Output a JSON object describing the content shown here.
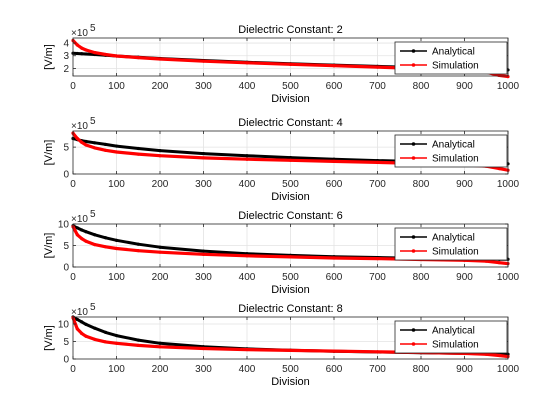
{
  "chart_data": [
    {
      "type": "line",
      "title": "Dielectric Constant: 2",
      "xlabel": "Division",
      "ylabel": "[V/m]",
      "multiplier_base": "×10",
      "multiplier_exp": "5",
      "xlim": [
        0,
        1000
      ],
      "ylim": [
        1.4,
        4.4
      ],
      "xticks": [
        0,
        100,
        200,
        300,
        400,
        500,
        600,
        700,
        800,
        900,
        1000
      ],
      "yticks": [
        2,
        3,
        4
      ],
      "grid": true,
      "legend": "top-right",
      "x": [
        0,
        10,
        20,
        30,
        50,
        75,
        100,
        150,
        200,
        300,
        400,
        500,
        600,
        700,
        800,
        900,
        950,
        980,
        1000
      ],
      "series": [
        {
          "name": "Analytical",
          "color": "#000000",
          "values": [
            3.2,
            3.18,
            3.16,
            3.14,
            3.1,
            3.04,
            2.98,
            2.88,
            2.78,
            2.62,
            2.48,
            2.36,
            2.26,
            2.16,
            2.06,
            1.96,
            1.92,
            1.9,
            1.88
          ]
        },
        {
          "name": "Simulation",
          "color": "#ff0000",
          "values": [
            4.2,
            3.85,
            3.6,
            3.45,
            3.25,
            3.1,
            2.98,
            2.85,
            2.74,
            2.57,
            2.44,
            2.32,
            2.21,
            2.1,
            1.98,
            1.85,
            1.7,
            1.45,
            1.35
          ]
        }
      ]
    },
    {
      "type": "line",
      "title": "Dielectric Constant: 4",
      "xlabel": "Division",
      "ylabel": "[V/m]",
      "multiplier_base": "×10",
      "multiplier_exp": "5",
      "xlim": [
        0,
        1000
      ],
      "ylim": [
        0,
        8
      ],
      "xticks": [
        0,
        100,
        200,
        300,
        400,
        500,
        600,
        700,
        800,
        900,
        1000
      ],
      "yticks": [
        0,
        5
      ],
      "grid": true,
      "legend": "top-right",
      "x": [
        0,
        10,
        20,
        30,
        50,
        75,
        100,
        150,
        200,
        300,
        400,
        500,
        600,
        700,
        800,
        900,
        950,
        980,
        1000
      ],
      "series": [
        {
          "name": "Analytical",
          "color": "#000000",
          "values": [
            6.6,
            6.4,
            6.2,
            6.05,
            5.8,
            5.5,
            5.2,
            4.75,
            4.35,
            3.8,
            3.4,
            3.05,
            2.75,
            2.5,
            2.3,
            2.1,
            2.0,
            1.95,
            1.9
          ]
        },
        {
          "name": "Simulation",
          "color": "#ff0000",
          "values": [
            7.6,
            6.6,
            5.9,
            5.4,
            4.85,
            4.4,
            4.1,
            3.7,
            3.4,
            3.0,
            2.75,
            2.55,
            2.35,
            2.15,
            1.95,
            1.7,
            1.45,
            1.0,
            0.7
          ]
        }
      ]
    },
    {
      "type": "line",
      "title": "Dielectric Constant: 6",
      "xlabel": "Division",
      "ylabel": "[V/m]",
      "multiplier_base": "×10",
      "multiplier_exp": "5",
      "xlim": [
        0,
        1000
      ],
      "ylim": [
        0,
        10
      ],
      "xticks": [
        0,
        100,
        200,
        300,
        400,
        500,
        600,
        700,
        800,
        900,
        1000
      ],
      "yticks": [
        0,
        5,
        10
      ],
      "grid": true,
      "legend": "top-right",
      "x": [
        0,
        10,
        20,
        30,
        50,
        75,
        100,
        150,
        200,
        300,
        400,
        500,
        600,
        700,
        800,
        900,
        950,
        980,
        1000
      ],
      "series": [
        {
          "name": "Analytical",
          "color": "#000000",
          "values": [
            9.6,
            9.1,
            8.6,
            8.2,
            7.5,
            6.8,
            6.2,
            5.3,
            4.6,
            3.7,
            3.1,
            2.7,
            2.4,
            2.2,
            2.0,
            1.9,
            1.85,
            1.8,
            1.8
          ]
        },
        {
          "name": "Simulation",
          "color": "#ff0000",
          "values": [
            9.4,
            7.5,
            6.6,
            6.0,
            5.2,
            4.7,
            4.3,
            3.8,
            3.45,
            2.95,
            2.6,
            2.35,
            2.1,
            1.95,
            1.75,
            1.55,
            1.35,
            1.0,
            0.8
          ]
        }
      ]
    },
    {
      "type": "line",
      "title": "Dielectric Constant: 8",
      "xlabel": "Division",
      "ylabel": "[V/m]",
      "multiplier_base": "×10",
      "multiplier_exp": "5",
      "xlim": [
        0,
        1000
      ],
      "ylim": [
        0,
        12
      ],
      "xticks": [
        0,
        100,
        200,
        300,
        400,
        500,
        600,
        700,
        800,
        900,
        1000
      ],
      "yticks": [
        0,
        5,
        10
      ],
      "grid": true,
      "legend": "top-right",
      "x": [
        0,
        10,
        20,
        30,
        50,
        75,
        100,
        150,
        200,
        300,
        400,
        500,
        600,
        700,
        800,
        900,
        950,
        980,
        1000
      ],
      "series": [
        {
          "name": "Analytical",
          "color": "#000000",
          "values": [
            12.0,
            11.3,
            10.6,
            9.9,
            8.8,
            7.6,
            6.7,
            5.4,
            4.5,
            3.5,
            2.9,
            2.5,
            2.2,
            2.0,
            1.8,
            1.6,
            1.5,
            1.4,
            1.35
          ]
        },
        {
          "name": "Simulation",
          "color": "#ff0000",
          "values": [
            11.8,
            8.6,
            7.3,
            6.5,
            5.6,
            4.9,
            4.5,
            3.9,
            3.5,
            3.0,
            2.7,
            2.45,
            2.25,
            2.05,
            1.85,
            1.6,
            1.35,
            1.0,
            0.7
          ]
        }
      ]
    }
  ]
}
